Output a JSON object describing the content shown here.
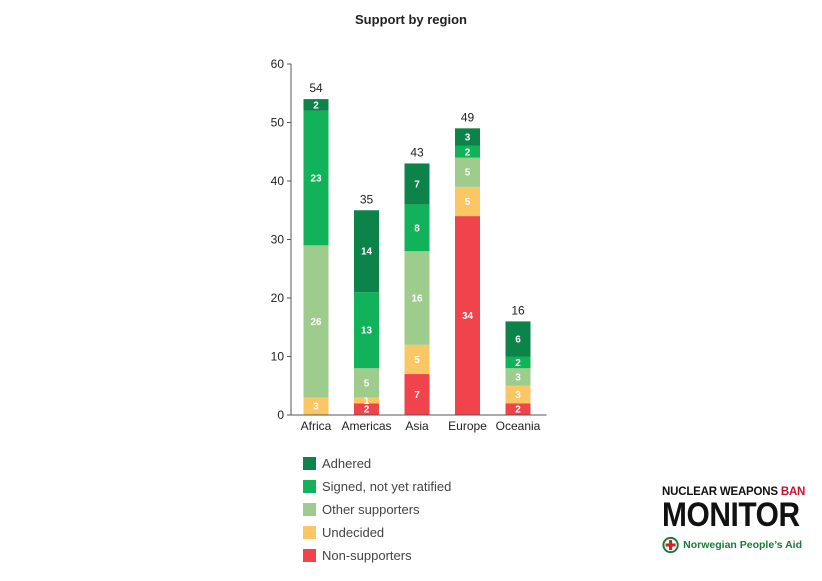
{
  "chart_data": {
    "type": "bar",
    "stacked": true,
    "title": "Support by region",
    "xlabel": "",
    "ylabel": "",
    "ylim": [
      0,
      60
    ],
    "yticks": [
      0,
      10,
      20,
      30,
      40,
      50,
      60
    ],
    "categories": [
      "Africa",
      "Americas",
      "Asia",
      "Europe",
      "Oceania"
    ],
    "totals": [
      54,
      35,
      43,
      49,
      16
    ],
    "series": [
      {
        "name": "Non-supporters",
        "color": "#f0434c",
        "values": [
          0,
          2,
          7,
          34,
          2
        ]
      },
      {
        "name": "Undecided",
        "color": "#fbc765",
        "values": [
          3,
          1,
          5,
          5,
          3
        ]
      },
      {
        "name": "Other supporters",
        "color": "#9dcc8c",
        "values": [
          26,
          5,
          16,
          5,
          3
        ]
      },
      {
        "name": "Signed, not yet ratified",
        "color": "#12b25b",
        "values": [
          23,
          13,
          8,
          2,
          2
        ]
      },
      {
        "name": "Adhered",
        "color": "#0c8348",
        "values": [
          2,
          14,
          7,
          3,
          6
        ]
      }
    ],
    "legend_order": [
      "Adhered",
      "Signed, not yet ratified",
      "Other supporters",
      "Undecided",
      "Non-supporters"
    ],
    "legend_position": "bottom",
    "grid": false
  },
  "branding": {
    "line1_main": "NUCLEAR WEAPONS ",
    "line1_accent": "BAN",
    "line2": "MONITOR",
    "org": "Norwegian People’s Aid",
    "logo_icon": "red-cross-circle-icon",
    "accent_color": "#c8102e",
    "org_color": "#1a7a3b"
  }
}
